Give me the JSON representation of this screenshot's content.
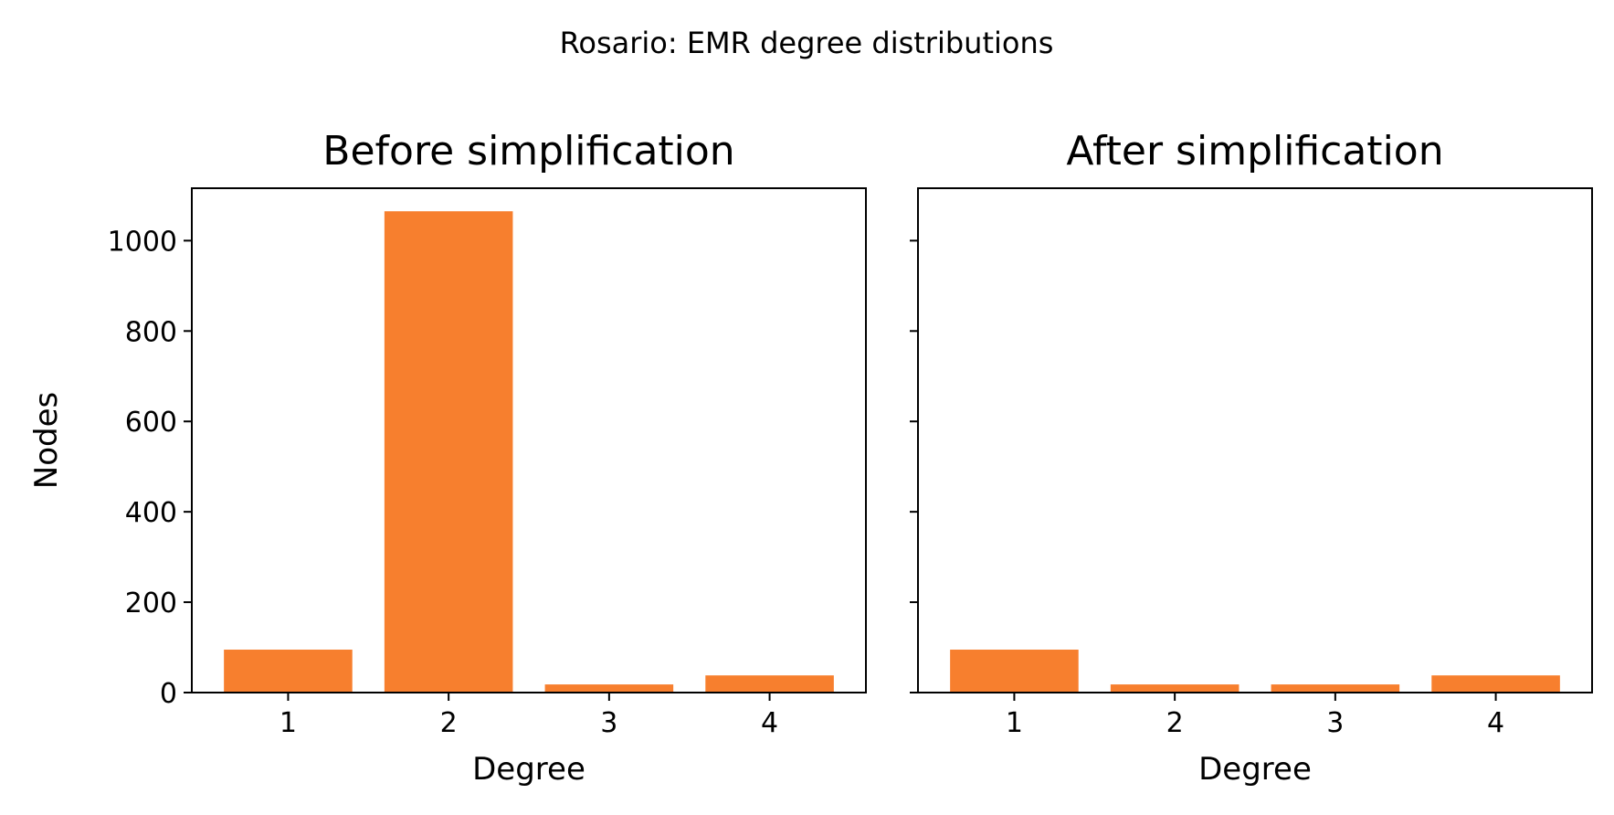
{
  "figure": {
    "suptitle": "Rosario: EMR degree distributions",
    "bar_color": "#f77f2e"
  },
  "chart_data": [
    {
      "type": "bar",
      "title": "Before simplification",
      "xlabel": "Degree",
      "ylabel": "Nodes",
      "categories": [
        "1",
        "2",
        "3",
        "4"
      ],
      "values": [
        95,
        1065,
        18,
        38
      ],
      "ylim": [
        0,
        1116
      ],
      "yticks": [
        "0",
        "200",
        "400",
        "600",
        "800",
        "1000"
      ],
      "show_ytick_labels": true,
      "grid": false,
      "legend": "none"
    },
    {
      "type": "bar",
      "title": "After simplification",
      "xlabel": "Degree",
      "ylabel": "",
      "categories": [
        "1",
        "2",
        "3",
        "4"
      ],
      "values": [
        95,
        18,
        18,
        38
      ],
      "ylim": [
        0,
        1116
      ],
      "yticks": [
        "0",
        "200",
        "400",
        "600",
        "800",
        "1000"
      ],
      "show_ytick_labels": false,
      "grid": false,
      "legend": "none"
    }
  ]
}
